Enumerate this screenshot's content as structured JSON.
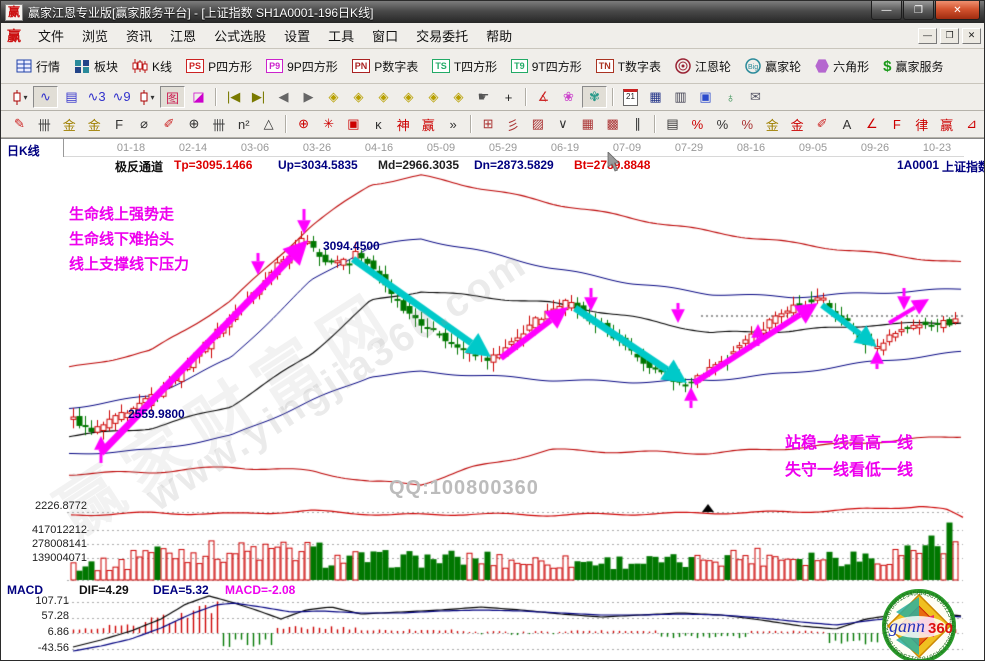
{
  "window": {
    "logo_char": "赢",
    "title": "赢家江恩专业版[赢家服务平台] - [上证指数  SH1A0001-196日K线]",
    "buttons": {
      "minimize": "—",
      "maximize": "❐",
      "close": "✕"
    }
  },
  "menu": {
    "logo_char": "赢",
    "items": [
      "文件",
      "浏览",
      "资讯",
      "江恩",
      "公式选股",
      "设置",
      "工具",
      "窗口",
      "交易委托",
      "帮助"
    ],
    "mdi_buttons": [
      {
        "name": "mdi-minimize-button",
        "glyph": "—"
      },
      {
        "name": "mdi-restore-button",
        "glyph": "❐"
      },
      {
        "name": "mdi-close-button",
        "glyph": "✕"
      }
    ]
  },
  "toolbar_main": [
    {
      "name": "quotes",
      "label": "行情",
      "icon": "table"
    },
    {
      "name": "sectors",
      "label": "板块",
      "icon": "blocks"
    },
    {
      "name": "kline",
      "label": "K线",
      "icon": "candles"
    },
    {
      "name": "p-square",
      "label": "P四方形",
      "icon": "badge",
      "badge": "PS",
      "color": "#cc2222"
    },
    {
      "name": "9p-square",
      "label": "9P四方形",
      "icon": "badge",
      "badge": "P9",
      "color": "#cc22cc"
    },
    {
      "name": "p-number-table",
      "label": "P数字表",
      "icon": "badge",
      "badge": "PN",
      "color": "#aa2222"
    },
    {
      "name": "t-square",
      "label": "T四方形",
      "icon": "badge",
      "badge": "TS",
      "color": "#22aa66"
    },
    {
      "name": "9t-square",
      "label": "9T四方形",
      "icon": "badge",
      "badge": "T9",
      "color": "#22aa66"
    },
    {
      "name": "t-number-table",
      "label": "T数字表",
      "icon": "badge",
      "badge": "TN",
      "color": "#aa3322"
    },
    {
      "name": "gann-wheel",
      "label": "江恩轮",
      "icon": "wheel"
    },
    {
      "name": "winner-wheel",
      "label": "赢家轮",
      "icon": "bigwheel"
    },
    {
      "name": "hexagon",
      "label": "六角形",
      "icon": "hexagon"
    },
    {
      "name": "winner-service",
      "label": "赢家服务",
      "icon": "dollar"
    }
  ],
  "toolbar_quick": [
    {
      "name": "kline-style-dropdown",
      "icon": "candle",
      "caret": true
    },
    {
      "name": "zigzag-overlay",
      "glyph": "∿",
      "color": "#3333cc",
      "pressed": true
    },
    {
      "name": "info-board",
      "glyph": "▤",
      "color": "#3333cc"
    },
    {
      "name": "wave-3",
      "glyph": "∿3",
      "color": "#3333cc"
    },
    {
      "name": "wave-9",
      "glyph": "∿9",
      "color": "#3333cc"
    },
    {
      "name": "candle-type-dropdown",
      "icon": "candle",
      "caret": true
    },
    {
      "name": "pattern-marker",
      "glyph": "图",
      "color": "#cc2255",
      "pressed": true
    },
    {
      "name": "color-histogram",
      "glyph": "◪",
      "color": "#cc00cc"
    },
    {
      "sep": true
    },
    {
      "name": "first-page",
      "glyph": "|◀",
      "color": "#7a7a00"
    },
    {
      "name": "last-page",
      "glyph": "▶|",
      "color": "#7a7a00"
    },
    {
      "name": "prev-page",
      "glyph": "◀",
      "color": "#666666"
    },
    {
      "name": "next-page",
      "glyph": "▶",
      "color": "#666666"
    },
    {
      "name": "zoom-left-diamond",
      "glyph": "◈",
      "color": "#b8a000"
    },
    {
      "name": "zoom-right-diamond",
      "glyph": "◈",
      "color": "#b8a000"
    },
    {
      "name": "zoom-h-diamond",
      "glyph": "◈",
      "color": "#b8a000"
    },
    {
      "name": "zoom-d-diamond",
      "glyph": "◈",
      "color": "#b8a000"
    },
    {
      "name": "zoom-all-diamond",
      "glyph": "◈",
      "color": "#b8a000"
    },
    {
      "name": "zoom-reset-diamond",
      "glyph": "◈",
      "color": "#b8a000"
    },
    {
      "name": "drag-hand",
      "glyph": "☛",
      "color": "#555555"
    },
    {
      "name": "crosshair",
      "glyph": "+",
      "color": "#222222"
    },
    {
      "sep": true
    },
    {
      "name": "angle-tool",
      "glyph": "∡",
      "color": "#cc2222"
    },
    {
      "name": "flower-tool",
      "glyph": "❀",
      "color": "#cc44cc"
    },
    {
      "name": "brain-tool",
      "glyph": "✾",
      "color": "#2a9a8a",
      "pressed": true
    },
    {
      "sep": true
    },
    {
      "name": "calendar",
      "icon": "calendar",
      "text": "21"
    },
    {
      "name": "calculator",
      "glyph": "▦",
      "color": "#223388"
    },
    {
      "name": "notes",
      "glyph": "▥",
      "color": "#444455"
    },
    {
      "name": "save",
      "glyph": "▣",
      "color": "#2a4acc"
    },
    {
      "name": "web-save",
      "glyph": "♁",
      "color": "#2a8a4a"
    },
    {
      "name": "send-mail",
      "glyph": "✉",
      "color": "#555566"
    }
  ],
  "toolbar_draw": [
    {
      "name": "pencil",
      "glyph": "✎",
      "color": "#cc2222"
    },
    {
      "name": "hatch-lines",
      "glyph": "卌",
      "color": "#444444"
    },
    {
      "name": "gold-grid-1",
      "glyph": "金",
      "color": "#a08000"
    },
    {
      "name": "gold-grid-2",
      "glyph": "金",
      "color": "#a08000"
    },
    {
      "name": "fibonacci",
      "glyph": "F",
      "color": "#333333"
    },
    {
      "name": "circle-tool",
      "glyph": "⌀",
      "color": "#333333"
    },
    {
      "name": "pencil-ruler",
      "glyph": "✐",
      "color": "#cc2222"
    },
    {
      "name": "cycle-circle",
      "glyph": "⊕",
      "color": "#333333"
    },
    {
      "name": "hatch-lines-2",
      "glyph": "卌",
      "color": "#444444"
    },
    {
      "name": "n-square",
      "glyph": "n²",
      "color": "#333333"
    },
    {
      "name": "angle-flag",
      "glyph": "△",
      "color": "#333333"
    },
    {
      "sep": true
    },
    {
      "name": "red-cycle",
      "glyph": "⊕",
      "color": "#cc0000"
    },
    {
      "name": "starburst",
      "glyph": "✳",
      "color": "#cc0000"
    },
    {
      "name": "square-target",
      "glyph": "▣",
      "color": "#cc0000"
    },
    {
      "name": "k-mark",
      "glyph": "ĸ",
      "color": "#333333"
    },
    {
      "name": "shen-tool",
      "glyph": "神",
      "color": "#cc0000"
    },
    {
      "name": "ying-tool",
      "glyph": "赢",
      "color": "#cc0000"
    },
    {
      "name": "more-tools",
      "glyph": "»",
      "color": "#333333"
    },
    {
      "sep": true
    },
    {
      "name": "box-grid",
      "glyph": "⊞",
      "color": "#aa3333"
    },
    {
      "name": "fan-lines",
      "glyph": "彡",
      "color": "#aa3333"
    },
    {
      "name": "shade-grid",
      "glyph": "▨",
      "color": "#aa3333"
    },
    {
      "name": "v-wave",
      "glyph": "∨",
      "color": "#333333"
    },
    {
      "name": "dense-grid",
      "glyph": "▦",
      "color": "#aa3333"
    },
    {
      "name": "dense-grid-2",
      "glyph": "▩",
      "color": "#aa3333"
    },
    {
      "name": "parallel-lines",
      "glyph": "∥",
      "color": "#333333"
    },
    {
      "sep": true
    },
    {
      "name": "gann-box",
      "glyph": "▤",
      "color": "#333333"
    },
    {
      "name": "percent-red",
      "glyph": "%",
      "color": "#cc0000"
    },
    {
      "name": "percent",
      "glyph": "%",
      "color": "#333333"
    },
    {
      "name": "percent-line",
      "glyph": "%",
      "color": "#aa3333"
    },
    {
      "name": "gold-section",
      "glyph": "金",
      "color": "#a08000"
    },
    {
      "name": "gold-line",
      "glyph": "金",
      "color": "#cc0000"
    },
    {
      "name": "trend-pencil",
      "glyph": "✐",
      "color": "#cc2222"
    },
    {
      "name": "a-shape",
      "glyph": "A",
      "color": "#333333"
    },
    {
      "name": "angle-line",
      "glyph": "∠",
      "color": "#cc0000"
    },
    {
      "name": "f-angle",
      "glyph": "F",
      "color": "#cc0000"
    },
    {
      "name": "lv-tool",
      "glyph": "律",
      "color": "#cc0000"
    },
    {
      "name": "ying-angle",
      "glyph": "赢",
      "color": "#cc0000"
    },
    {
      "name": "wedge",
      "glyph": "⊿",
      "color": "#cc0000"
    }
  ],
  "chart": {
    "period_label": "日K线",
    "dates": [
      "01-18",
      "02-14",
      "03-06",
      "03-26",
      "04-16",
      "05-09",
      "05-29",
      "06-19",
      "07-09",
      "07-29",
      "08-16",
      "09-05",
      "09-26",
      "10-23"
    ],
    "indicator_name": "极反通道",
    "indicator_values": [
      {
        "text": "Tp=3095.1466",
        "color": "#dd0000"
      },
      {
        "text": "Up=3034.5835",
        "color": "#000080"
      },
      {
        "text": "Md=2966.3035",
        "color": "#202020"
      },
      {
        "text": "Dn=2873.5829",
        "color": "#000080"
      },
      {
        "text": "Bt=2789.8848",
        "color": "#dd0000"
      }
    ],
    "symbol_code": "1A0001",
    "symbol_name": "上证指数",
    "note_lines_left": [
      "生命线上强势走",
      "生命线下难抬头",
      "线上支撑线下压力"
    ],
    "note_lines_right": [
      "站稳一线看高一线",
      "失守一线看低一线"
    ],
    "price_label_low": "2559.9800",
    "price_label_high": "3094.4500"
  },
  "watermark": {
    "qq": "QQ:100800360",
    "site": "www.yingjia360.com",
    "brand": "赢家财富网"
  },
  "volume_pane": {
    "scale": [
      "2226.8772",
      "417012212",
      "278008141",
      "139004071"
    ]
  },
  "macd_pane": {
    "title": "MACD",
    "dif": "DIF=4.29",
    "dea": "DEA=5.32",
    "macd": "MACD=-2.08",
    "scale": [
      "107.71",
      "57.28",
      "6.86",
      "-43.56"
    ]
  },
  "gann_logo": {
    "gann": "gann",
    "n360": "360",
    "rim": "3456789012345678901234567890123456789012345678901234567890"
  },
  "colors": {
    "up": "#cc0000",
    "down": "#007700",
    "magenta": "#ff00ff",
    "cyan": "#00c9c9",
    "channel_outer": "#bb0000",
    "channel_inner": "#000080",
    "channel_mid": "#000000"
  }
}
